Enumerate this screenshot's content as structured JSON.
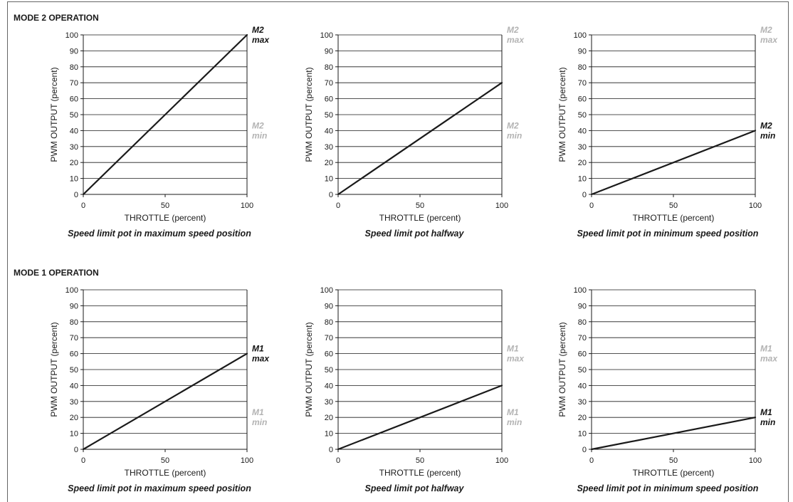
{
  "frame": {
    "stroke": "#666666"
  },
  "sections": [
    {
      "title": "MODE 2 OPERATION"
    },
    {
      "title": "MODE 1 OPERATION"
    }
  ],
  "colors": {
    "line": "#1a1a1a",
    "grid": "#1a1a1a",
    "marker_active": "#111111",
    "marker_inactive": "#b3b3b3"
  },
  "chart_data": [
    {
      "type": "line",
      "section": 0,
      "xlabel": "THROTTLE  (percent)",
      "ylabel": "PWM OUTPUT  (percent)",
      "caption": "Speed limit pot in maximum speed position",
      "xlim": [
        0,
        100
      ],
      "ylim": [
        0,
        100
      ],
      "x_ticks": [
        0,
        50,
        100
      ],
      "y_ticks": [
        0,
        10,
        20,
        30,
        40,
        50,
        60,
        70,
        80,
        90,
        100
      ],
      "grid": "horizontal",
      "x": [
        0,
        100
      ],
      "y": [
        0,
        100
      ],
      "markers": [
        {
          "line1": "M2",
          "line2": "max",
          "y": 100,
          "active": true
        },
        {
          "line1": "M2",
          "line2": "min",
          "y": 40,
          "active": false
        }
      ]
    },
    {
      "type": "line",
      "section": 0,
      "xlabel": "THROTTLE  (percent)",
      "ylabel": "PWM OUTPUT  (percent)",
      "caption": "Speed limit pot halfway",
      "xlim": [
        0,
        100
      ],
      "ylim": [
        0,
        100
      ],
      "x_ticks": [
        0,
        50,
        100
      ],
      "y_ticks": [
        0,
        10,
        20,
        30,
        40,
        50,
        60,
        70,
        80,
        90,
        100
      ],
      "grid": "horizontal",
      "x": [
        0,
        100
      ],
      "y": [
        0,
        70
      ],
      "markers": [
        {
          "line1": "M2",
          "line2": "max",
          "y": 100,
          "active": false
        },
        {
          "line1": "M2",
          "line2": "min",
          "y": 40,
          "active": false
        }
      ]
    },
    {
      "type": "line",
      "section": 0,
      "xlabel": "THROTTLE  (percent)",
      "ylabel": "PWM OUTPUT  (percent)",
      "caption": "Speed limit pot in minimum speed position",
      "xlim": [
        0,
        100
      ],
      "ylim": [
        0,
        100
      ],
      "x_ticks": [
        0,
        50,
        100
      ],
      "y_ticks": [
        0,
        10,
        20,
        30,
        40,
        50,
        60,
        70,
        80,
        90,
        100
      ],
      "grid": "horizontal",
      "x": [
        0,
        100
      ],
      "y": [
        0,
        40
      ],
      "markers": [
        {
          "line1": "M2",
          "line2": "max",
          "y": 100,
          "active": false
        },
        {
          "line1": "M2",
          "line2": "min",
          "y": 40,
          "active": true
        }
      ]
    },
    {
      "type": "line",
      "section": 1,
      "xlabel": "THROTTLE  (percent)",
      "ylabel": "PWM OUTPUT  (percent)",
      "caption": "Speed limit pot in maximum speed position",
      "xlim": [
        0,
        100
      ],
      "ylim": [
        0,
        100
      ],
      "x_ticks": [
        0,
        50,
        100
      ],
      "y_ticks": [
        0,
        10,
        20,
        30,
        40,
        50,
        60,
        70,
        80,
        90,
        100
      ],
      "grid": "horizontal",
      "x": [
        0,
        100
      ],
      "y": [
        0,
        60
      ],
      "markers": [
        {
          "line1": "M1",
          "line2": "max",
          "y": 60,
          "active": true
        },
        {
          "line1": "M1",
          "line2": "min",
          "y": 20,
          "active": false
        }
      ]
    },
    {
      "type": "line",
      "section": 1,
      "xlabel": "THROTTLE  (percent)",
      "ylabel": "PWM OUTPUT  (percent)",
      "caption": "Speed limit pot halfway",
      "xlim": [
        0,
        100
      ],
      "ylim": [
        0,
        100
      ],
      "x_ticks": [
        0,
        50,
        100
      ],
      "y_ticks": [
        0,
        10,
        20,
        30,
        40,
        50,
        60,
        70,
        80,
        90,
        100
      ],
      "grid": "horizontal",
      "x": [
        0,
        100
      ],
      "y": [
        0,
        40
      ],
      "markers": [
        {
          "line1": "M1",
          "line2": "max",
          "y": 60,
          "active": false
        },
        {
          "line1": "M1",
          "line2": "min",
          "y": 20,
          "active": false
        }
      ]
    },
    {
      "type": "line",
      "section": 1,
      "xlabel": "THROTTLE  (percent)",
      "ylabel": "PWM OUTPUT  (percent)",
      "caption": "Speed limit pot in minimum speed position",
      "xlim": [
        0,
        100
      ],
      "ylim": [
        0,
        100
      ],
      "x_ticks": [
        0,
        50,
        100
      ],
      "y_ticks": [
        0,
        10,
        20,
        30,
        40,
        50,
        60,
        70,
        80,
        90,
        100
      ],
      "grid": "horizontal",
      "x": [
        0,
        100
      ],
      "y": [
        0,
        20
      ],
      "markers": [
        {
          "line1": "M1",
          "line2": "max",
          "y": 60,
          "active": false
        },
        {
          "line1": "M1",
          "line2": "min",
          "y": 20,
          "active": true
        }
      ]
    }
  ]
}
